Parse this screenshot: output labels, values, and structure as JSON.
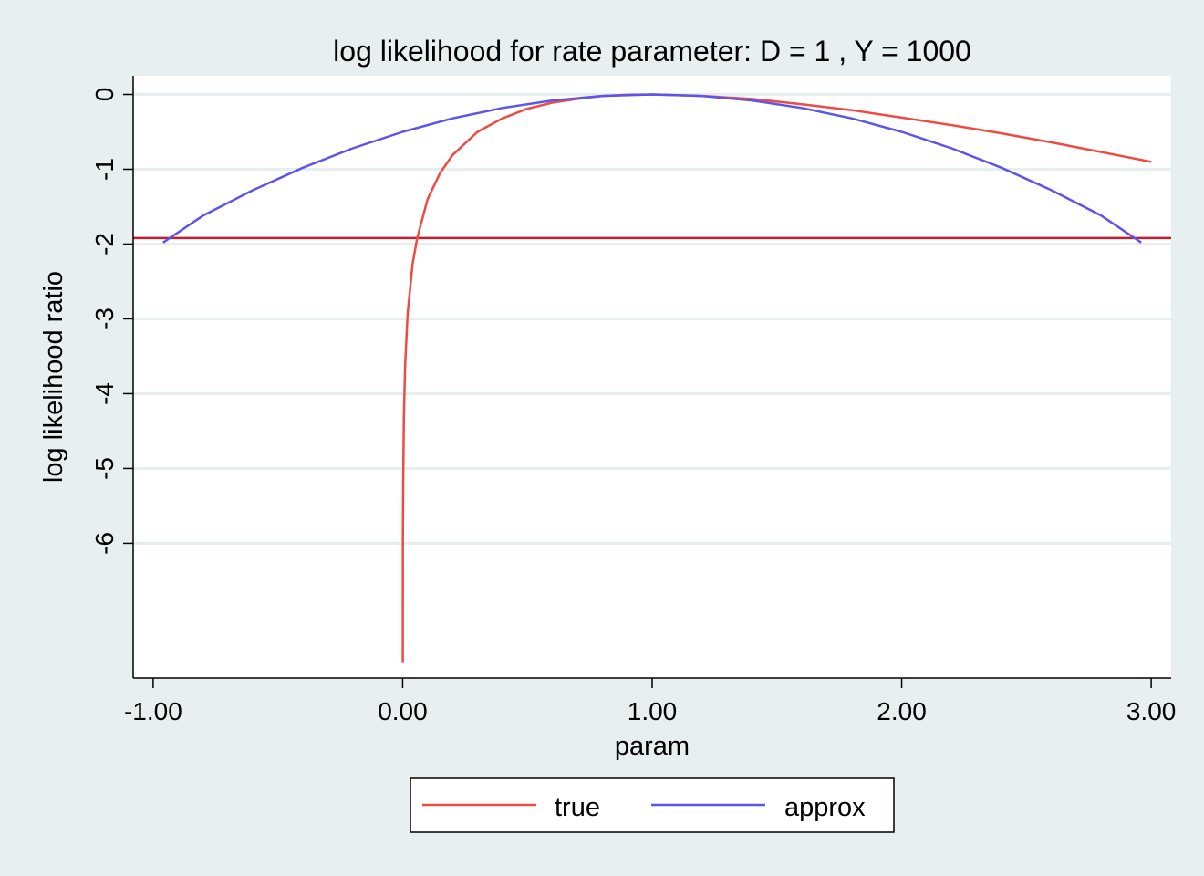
{
  "chart_data": {
    "type": "line",
    "title": "log likelihood for rate parameter: D = 1 , Y = 1000",
    "xlabel": "param",
    "ylabel": "log likelihood ratio",
    "xlim": [
      -1.08,
      3.08
    ],
    "ylim": [
      -7.8,
      0.25
    ],
    "x_ticks": [
      -1,
      0,
      1,
      2,
      3
    ],
    "x_tick_labels": [
      "-1.00",
      "0.00",
      "1.00",
      "2.00",
      "3.00"
    ],
    "y_ticks": [
      0,
      -1,
      -2,
      -3,
      -4,
      -5,
      -6
    ],
    "y_tick_labels": [
      "0",
      "-1",
      "-2",
      "-3",
      "-4",
      "-5",
      "-6"
    ],
    "grid": true,
    "legend": "bottom",
    "series": [
      {
        "name": "true",
        "color": "#ef4b45",
        "x": [
          0.001,
          0.002,
          0.005,
          0.01,
          0.02,
          0.04,
          0.0582,
          0.1,
          0.15,
          0.2,
          0.3,
          0.4,
          0.5,
          0.6,
          0.7,
          0.8,
          0.9,
          1.0,
          1.2,
          1.4,
          1.6,
          1.8,
          2.0,
          2.2,
          2.4,
          2.6,
          2.8,
          3.0
        ],
        "y": [
          -5.91,
          -5.22,
          -4.3,
          -3.61,
          -2.93,
          -2.26,
          -1.92,
          -1.4,
          -1.05,
          -0.81,
          -0.5,
          -0.32,
          -0.19,
          -0.11,
          -0.06,
          -0.02,
          -0.005,
          0.0,
          -0.02,
          -0.06,
          -0.13,
          -0.21,
          -0.31,
          -0.41,
          -0.52,
          -0.64,
          -0.77,
          -0.9
        ]
      },
      {
        "name": "approx",
        "color": "#5b55ee",
        "x": [
          -0.96,
          -0.8,
          -0.6,
          -0.4,
          -0.2,
          0.0,
          0.2,
          0.4,
          0.6,
          0.8,
          1.0,
          1.2,
          1.4,
          1.6,
          1.8,
          2.0,
          2.2,
          2.4,
          2.6,
          2.8,
          2.96
        ],
        "y": [
          -1.98,
          -1.62,
          -1.28,
          -0.98,
          -0.72,
          -0.5,
          -0.32,
          -0.18,
          -0.08,
          -0.02,
          0.0,
          -0.02,
          -0.08,
          -0.18,
          -0.32,
          -0.5,
          -0.72,
          -0.98,
          -1.28,
          -1.62,
          -1.98
        ]
      }
    ],
    "reference_line": {
      "y": -1.92,
      "color": "#c21e2d"
    }
  }
}
